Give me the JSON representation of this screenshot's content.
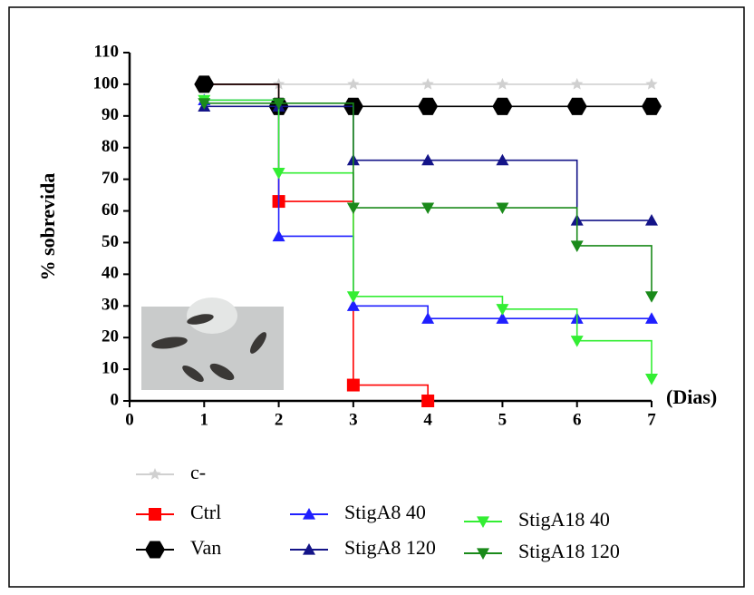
{
  "chart_data": {
    "type": "survival",
    "y_label": "% sobrevida",
    "x_label": "(Dias)",
    "xlim": [
      0,
      7
    ],
    "xticks": [
      0,
      1,
      2,
      3,
      4,
      5,
      6,
      7
    ],
    "ylim": [
      0,
      110
    ],
    "yticks": [
      0,
      10,
      20,
      30,
      40,
      50,
      60,
      70,
      80,
      90,
      100,
      110
    ],
    "series": [
      {
        "name": "c-",
        "color": "#d0d0d0",
        "marker": "star",
        "x": [
          1,
          2,
          3,
          4,
          5,
          6,
          7
        ],
        "values": [
          100,
          100,
          100,
          100,
          100,
          100,
          100
        ]
      },
      {
        "name": "Ctrl",
        "color": "#ff0000",
        "marker": "square",
        "x": [
          1,
          2,
          3,
          4
        ],
        "values": [
          100,
          63,
          5,
          0
        ]
      },
      {
        "name": "Van",
        "color": "#000000",
        "marker": "hexagon",
        "x": [
          1,
          2,
          3,
          4,
          5,
          6,
          7
        ],
        "values": [
          100,
          93,
          93,
          93,
          93,
          93,
          93
        ]
      },
      {
        "name": "StigA8 40",
        "color": "#1f1fff",
        "marker": "triangle-up",
        "x": [
          1,
          2,
          3,
          4,
          5,
          6,
          7
        ],
        "values": [
          95,
          52,
          30,
          26,
          26,
          26,
          26
        ]
      },
      {
        "name": "StigA8 120",
        "color": "#141488",
        "marker": "triangle-up",
        "x": [
          1,
          2,
          3,
          4,
          5,
          6,
          7
        ],
        "values": [
          93,
          93,
          76,
          76,
          76,
          57,
          57
        ]
      },
      {
        "name": "StigA18 40",
        "color": "#33ee33",
        "marker": "triangle-down",
        "x": [
          1,
          2,
          3,
          5,
          6,
          7
        ],
        "values": [
          95,
          72,
          33,
          29,
          19,
          7
        ]
      },
      {
        "name": "StigA18 120",
        "color": "#1a8a1a",
        "marker": "triangle-down",
        "x": [
          1,
          2,
          3,
          4,
          5,
          6,
          7
        ],
        "values": [
          94,
          94,
          61,
          61,
          61,
          49,
          33
        ]
      }
    ]
  }
}
